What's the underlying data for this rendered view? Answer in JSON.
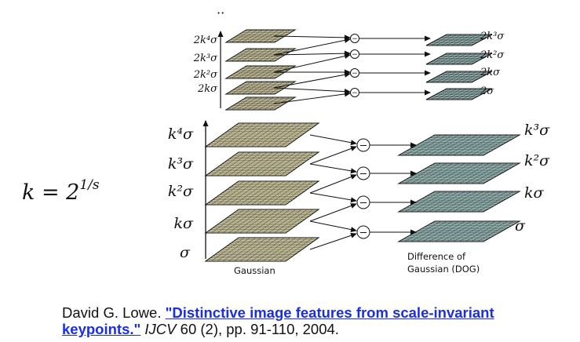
{
  "formula": {
    "lhs": "k = 2",
    "exponent": "1/s"
  },
  "top_octave": {
    "ellipsis": "··",
    "left_labels": [
      "2k⁴σ",
      "2k³σ",
      "2k²σ",
      "2kσ"
    ],
    "right_labels": [
      "2k³σ",
      "2k²σ",
      "2kσ",
      "2σ"
    ]
  },
  "bottom_octave": {
    "left_labels": [
      "k⁴σ",
      "k³σ",
      "k²σ",
      "kσ",
      "σ"
    ],
    "right_labels": [
      "k³σ",
      "k²σ",
      "kσ",
      "σ"
    ],
    "gaussian_caption": "Gaussian",
    "dog_caption_line1": "Difference of",
    "dog_caption_line2": "Gaussian (DOG)"
  },
  "operator_symbol": "−",
  "colors": {
    "gaussian_fill": "#d6cfa4",
    "dog_fill": "#9fc5c2",
    "grid_line": "#333333",
    "link": "#1a2ee6"
  },
  "citation": {
    "author": "David G. Lowe.",
    "title_line1": "\"Distinctive image features from scale-invariant",
    "title_line2": "keypoints.\"",
    "journal": "IJCV",
    "details": "60 (2), pp. 91-110, 2004."
  }
}
